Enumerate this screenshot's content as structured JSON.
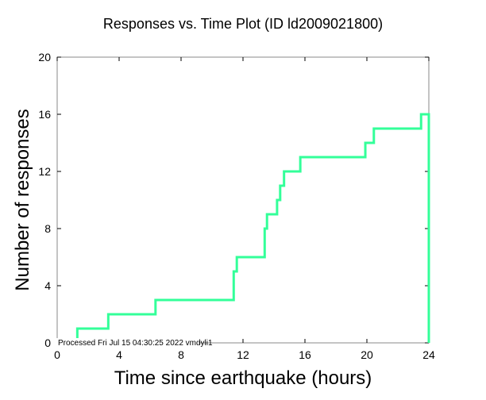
{
  "chart_data": {
    "type": "line",
    "title": "Responses vs. Time Plot (ID ld2009021800)",
    "xlabel": "Time since earthquake (hours)",
    "ylabel": "Number of responses",
    "xlim": [
      0,
      24
    ],
    "ylim": [
      0,
      20
    ],
    "xticks": [
      "0",
      "4",
      "8",
      "12",
      "16",
      "20",
      "24"
    ],
    "yticks": [
      "0",
      "4",
      "8",
      "12",
      "16",
      "20"
    ],
    "grid": false,
    "footer": "Processed Fri Jul 15 04:30:25 2022 vmdyli1",
    "line_color": "#33ff99",
    "series": [
      {
        "name": "responses",
        "points": [
          [
            1.3,
            0
          ],
          [
            1.3,
            1
          ],
          [
            3.3,
            1
          ],
          [
            3.3,
            2
          ],
          [
            6.35,
            2
          ],
          [
            6.35,
            3
          ],
          [
            11.4,
            3
          ],
          [
            11.4,
            5
          ],
          [
            11.6,
            5
          ],
          [
            11.6,
            6
          ],
          [
            13.4,
            6
          ],
          [
            13.4,
            8
          ],
          [
            13.55,
            8
          ],
          [
            13.55,
            9
          ],
          [
            14.2,
            9
          ],
          [
            14.2,
            10
          ],
          [
            14.4,
            10
          ],
          [
            14.4,
            11
          ],
          [
            14.65,
            11
          ],
          [
            14.65,
            12
          ],
          [
            15.7,
            12
          ],
          [
            15.7,
            13
          ],
          [
            19.9,
            13
          ],
          [
            19.9,
            14
          ],
          [
            20.45,
            14
          ],
          [
            20.45,
            15
          ],
          [
            23.5,
            15
          ],
          [
            23.5,
            16
          ],
          [
            24,
            16
          ],
          [
            24,
            0
          ]
        ]
      }
    ]
  }
}
